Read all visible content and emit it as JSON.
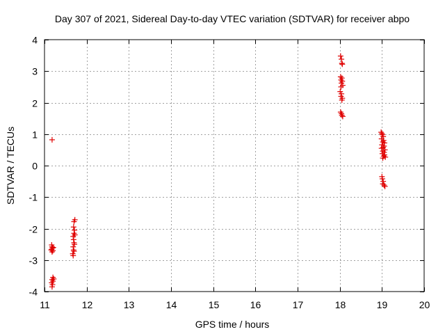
{
  "chart_data": {
    "type": "scatter",
    "title": "Day 307 of 2021, Sidereal Day-to-day VTEC variation (SDTVAR) for receiver abpo",
    "xlabel": "GPS time / hours",
    "ylabel": "SDTVAR / TECUs",
    "xlim": [
      11,
      20
    ],
    "ylim": [
      -4,
      4
    ],
    "xticks": [
      11,
      12,
      13,
      14,
      15,
      16,
      17,
      18,
      19,
      20
    ],
    "yticks": [
      -4,
      -3,
      -2,
      -1,
      0,
      1,
      2,
      3,
      4
    ],
    "xtick_labels": [
      "11",
      "12",
      "13",
      "14",
      "15",
      "16",
      "17",
      "18",
      "19",
      "20"
    ],
    "ytick_labels": [
      "-4",
      "-3",
      "-2",
      "-1",
      "0",
      "1",
      "2",
      "3",
      "4"
    ],
    "grid": true,
    "marker": "+",
    "color": "#e00000",
    "series": [
      {
        "name": "SDTVAR",
        "points": [
          [
            11.18,
            0.82
          ],
          [
            11.17,
            -2.52
          ],
          [
            11.18,
            -2.58
          ],
          [
            11.19,
            -2.62
          ],
          [
            11.17,
            -2.66
          ],
          [
            11.2,
            -2.7
          ],
          [
            11.18,
            -2.74
          ],
          [
            11.16,
            -2.68
          ],
          [
            11.21,
            -2.6
          ],
          [
            11.2,
            -3.55
          ],
          [
            11.22,
            -3.6
          ],
          [
            11.18,
            -3.62
          ],
          [
            11.2,
            -3.67
          ],
          [
            11.17,
            -3.72
          ],
          [
            11.19,
            -3.78
          ],
          [
            11.18,
            -3.85
          ],
          [
            11.72,
            -1.72
          ],
          [
            11.7,
            -1.78
          ],
          [
            11.69,
            -1.95
          ],
          [
            11.71,
            -2.05
          ],
          [
            11.7,
            -2.15
          ],
          [
            11.72,
            -2.2
          ],
          [
            11.68,
            -2.25
          ],
          [
            11.69,
            -2.35
          ],
          [
            11.7,
            -2.45
          ],
          [
            11.71,
            -2.5
          ],
          [
            11.68,
            -2.58
          ],
          [
            11.69,
            -2.68
          ],
          [
            11.7,
            -2.72
          ],
          [
            11.67,
            -2.8
          ],
          [
            11.68,
            -2.86
          ],
          [
            18.02,
            3.48
          ],
          [
            18.04,
            3.38
          ],
          [
            18.05,
            3.25
          ],
          [
            18.06,
            3.22
          ],
          [
            18.02,
            2.82
          ],
          [
            18.05,
            2.78
          ],
          [
            18.03,
            2.72
          ],
          [
            18.06,
            2.68
          ],
          [
            18.04,
            2.62
          ],
          [
            18.07,
            2.55
          ],
          [
            18.03,
            2.5
          ],
          [
            18.01,
            2.35
          ],
          [
            18.04,
            2.28
          ],
          [
            18.03,
            2.2
          ],
          [
            18.06,
            2.14
          ],
          [
            18.05,
            2.08
          ],
          [
            18.02,
            1.7
          ],
          [
            18.04,
            1.65
          ],
          [
            18.05,
            1.6
          ],
          [
            18.07,
            1.56
          ],
          [
            18.98,
            1.06
          ],
          [
            19.0,
            1.02
          ],
          [
            19.01,
            0.98
          ],
          [
            19.03,
            0.92
          ],
          [
            18.99,
            0.85
          ],
          [
            19.04,
            0.8
          ],
          [
            19.02,
            0.75
          ],
          [
            19.06,
            0.72
          ],
          [
            19.0,
            0.66
          ],
          [
            19.05,
            0.62
          ],
          [
            19.03,
            0.58
          ],
          [
            18.99,
            0.55
          ],
          [
            19.07,
            0.5
          ],
          [
            19.02,
            0.46
          ],
          [
            19.05,
            0.42
          ],
          [
            19.01,
            0.38
          ],
          [
            19.06,
            0.34
          ],
          [
            19.04,
            0.3
          ],
          [
            19.08,
            0.27
          ],
          [
            19.02,
            0.24
          ],
          [
            19.0,
            -0.35
          ],
          [
            19.01,
            -0.42
          ],
          [
            19.03,
            -0.5
          ],
          [
            19.02,
            -0.58
          ],
          [
            19.05,
            -0.62
          ],
          [
            19.07,
            -0.66
          ]
        ]
      }
    ]
  }
}
